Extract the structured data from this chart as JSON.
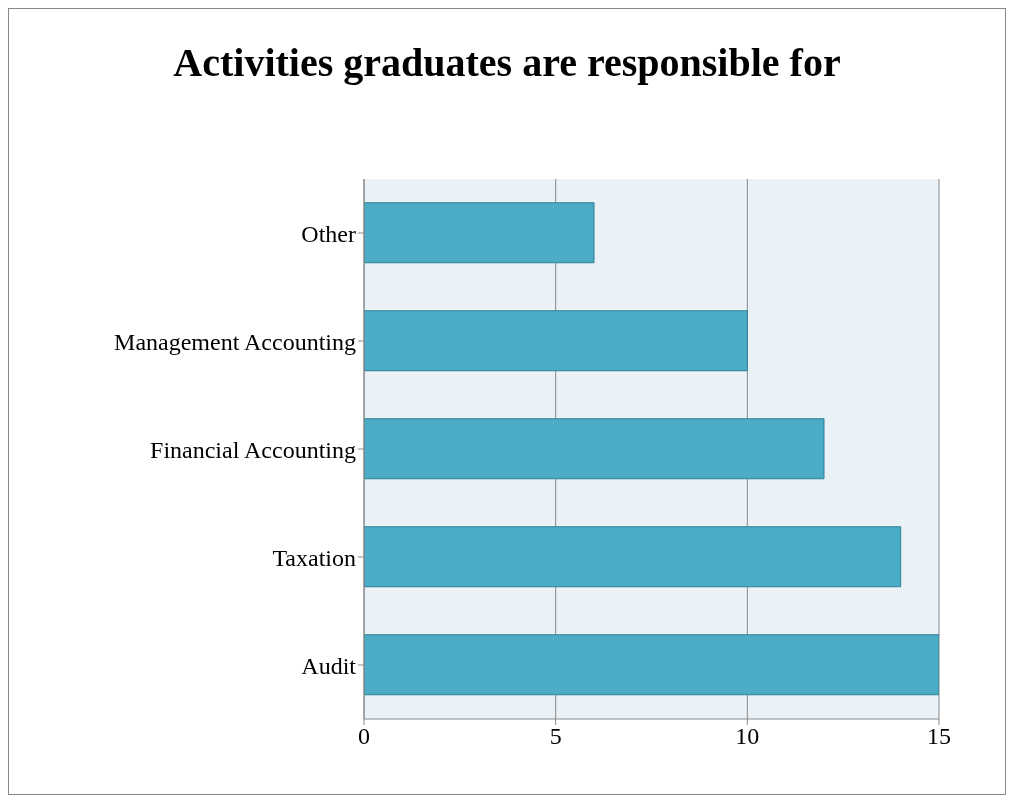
{
  "chart_data": {
    "type": "bar",
    "orientation": "horizontal",
    "title": "Activities graduates are responsible for",
    "categories": [
      "Other",
      "Management Accounting",
      "Financial Accounting",
      "Taxation",
      "Audit"
    ],
    "values": [
      6,
      10,
      12,
      14,
      15
    ],
    "color": "#4bacc6",
    "xlim": [
      0,
      15
    ],
    "xticks": [
      0,
      5,
      10,
      15
    ],
    "grid": "x"
  }
}
